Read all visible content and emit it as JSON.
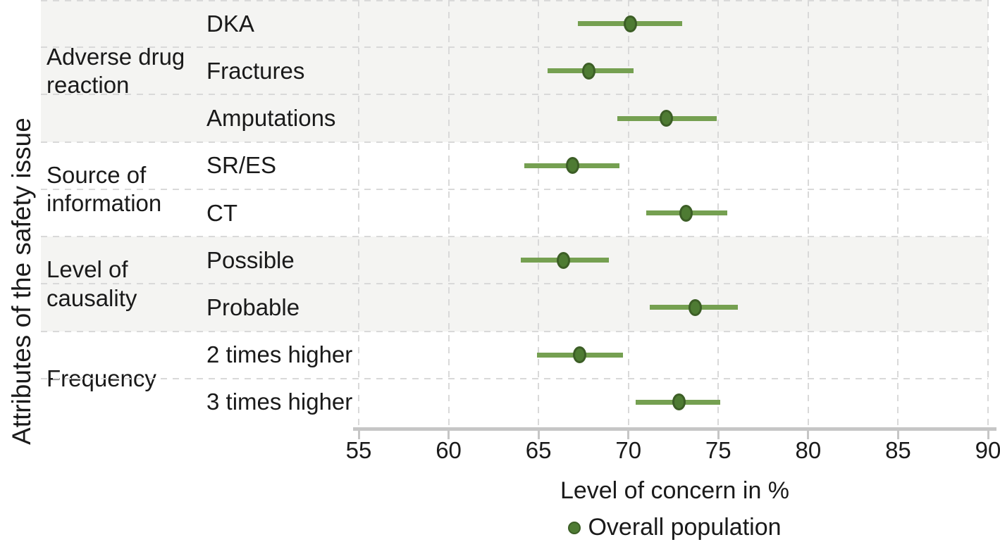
{
  "chart_data": {
    "type": "scatter",
    "subtype": "dot-with-error-bars-forest-plot",
    "title": "",
    "xlabel": "Level of concern in %",
    "ylabel": "Attributes of the safety issue",
    "xlim": [
      55,
      90
    ],
    "xticks": [
      55,
      60,
      65,
      70,
      75,
      80,
      85,
      90
    ],
    "grid": "dashed-both-axes",
    "legend_position": "bottom-center",
    "legend": [
      {
        "name": "Overall population"
      }
    ],
    "groups": [
      {
        "label": "Adverse drug reaction",
        "items": [
          {
            "label": "DKA",
            "value": 70.1,
            "ci": [
              67.2,
              73.0
            ]
          },
          {
            "label": "Fractures",
            "value": 67.8,
            "ci": [
              65.5,
              70.3
            ]
          },
          {
            "label": "Amputations",
            "value": 72.1,
            "ci": [
              69.4,
              74.9
            ]
          }
        ]
      },
      {
        "label": "Source of information",
        "items": [
          {
            "label": "SR/ES",
            "value": 66.9,
            "ci": [
              64.2,
              69.5
            ]
          },
          {
            "label": "CT",
            "value": 73.2,
            "ci": [
              71.0,
              75.5
            ]
          }
        ]
      },
      {
        "label": "Level of causality",
        "items": [
          {
            "label": "Possible",
            "value": 66.4,
            "ci": [
              64.0,
              68.9
            ]
          },
          {
            "label": "Probable",
            "value": 73.7,
            "ci": [
              71.2,
              76.1
            ]
          }
        ]
      },
      {
        "label": "Frequency",
        "items": [
          {
            "label": "2 times higher",
            "value": 67.3,
            "ci": [
              64.9,
              69.7
            ]
          },
          {
            "label": "3 times higher",
            "value": 72.8,
            "ci": [
              70.4,
              75.1
            ]
          }
        ]
      }
    ],
    "colors": {
      "band": "#f4f4f2",
      "gridline": "#d9d9d9",
      "axis": "#c6c6c6",
      "line": "#75a051",
      "marker_fill": "#4e7b33",
      "marker_edge": "#3c5e26",
      "text": "#1a1a1a"
    }
  }
}
